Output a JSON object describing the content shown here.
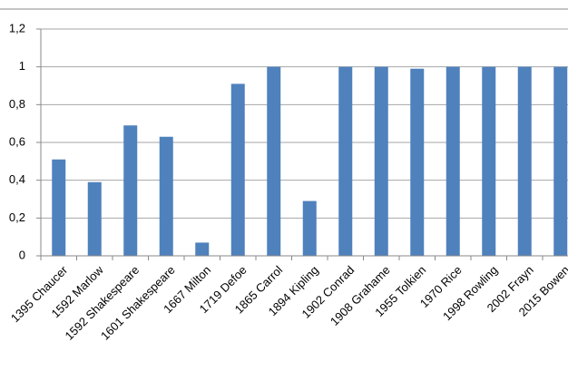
{
  "chart_data": {
    "type": "bar",
    "categories": [
      "1395 Chaucer",
      "1592 Marlow",
      "1592 Shakespeare",
      "1601 Shakespeare",
      "1667 Milton",
      "1719 Defoe",
      "1865 Carrol",
      "1894 Kipling",
      "1902 Conrad",
      "1908 Grahame",
      "1955 Tolkien",
      "1970 Rice",
      "1998 Rowling",
      "2002 Frayn",
      "2015 Bowen"
    ],
    "values": [
      0.51,
      0.39,
      0.69,
      0.63,
      0.07,
      0.91,
      1,
      0.29,
      1,
      1,
      0.99,
      1,
      1,
      1,
      1
    ],
    "color": "#4f81bd",
    "ylim": [
      0,
      1.2
    ],
    "yticks": [
      0,
      {
        "value": 0.2,
        "label": "0,2"
      },
      {
        "value": 0.4,
        "label": "0,4"
      },
      {
        "value": 0.6,
        "label": "0,6"
      },
      {
        "value": 0.8,
        "label": "0,8"
      },
      1,
      {
        "value": 1.2,
        "label": "1,2"
      }
    ],
    "grid": true
  }
}
